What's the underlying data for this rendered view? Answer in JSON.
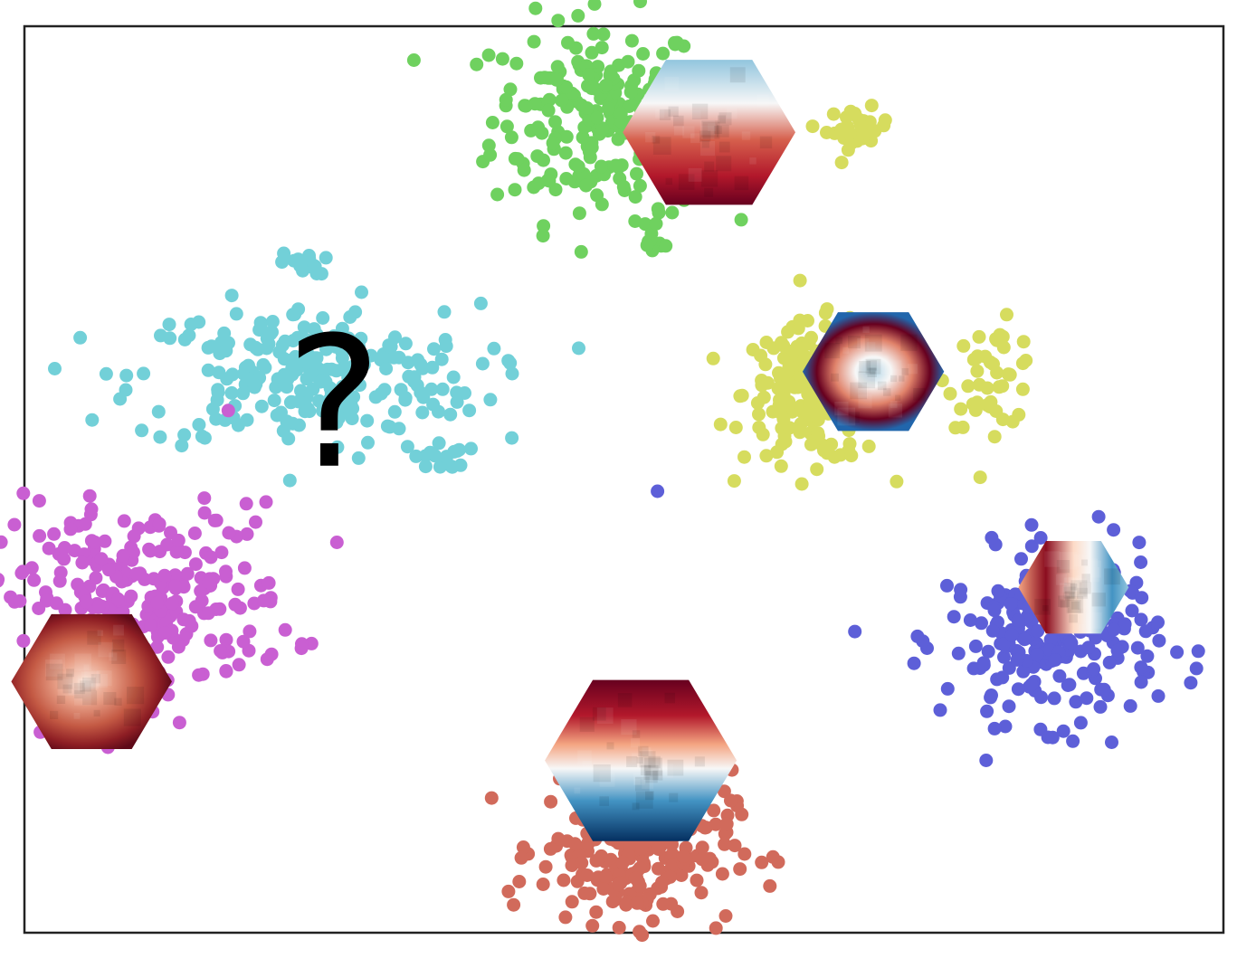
{
  "chart_data": {
    "type": "scatter",
    "title": "",
    "xlabel": "",
    "ylabel": "",
    "xlim": [
      0,
      100
    ],
    "ylim": [
      0,
      100
    ],
    "grid": false,
    "ticks": false,
    "annotation": "?",
    "series": [
      {
        "color": "#6fd15f",
        "clusters": [
          {
            "cx": 47.8,
            "cy": 89.8,
            "sx": 4.4,
            "sy": 5.6,
            "n": 230
          },
          {
            "cx": 52.8,
            "cy": 77.0,
            "sx": 0.6,
            "sy": 1.4,
            "n": 12
          }
        ]
      },
      {
        "color": "#d6dc5e",
        "clusters": [
          {
            "cx": 69.5,
            "cy": 88.7,
            "sx": 1.3,
            "sy": 1.1,
            "n": 30
          },
          {
            "cx": 66.0,
            "cy": 59.5,
            "sx": 3.0,
            "sy": 3.8,
            "n": 210
          },
          {
            "cx": 80.8,
            "cy": 61.5,
            "sx": 1.9,
            "sy": 2.8,
            "n": 45
          }
        ]
      },
      {
        "color": "#72d0d8",
        "clusters": [
          {
            "cx": 23.5,
            "cy": 61.3,
            "sx": 7.2,
            "sy": 4.0,
            "n": 250
          },
          {
            "cx": 23.3,
            "cy": 73.8,
            "sx": 1.0,
            "sy": 0.6,
            "n": 18
          },
          {
            "cx": 34.8,
            "cy": 52.6,
            "sx": 1.1,
            "sy": 0.8,
            "n": 16
          }
        ]
      },
      {
        "color": "#c95fd2",
        "clusters": [
          {
            "cx": 9.8,
            "cy": 36.8,
            "sx": 6.2,
            "sy": 5.2,
            "n": 260
          },
          {
            "cx": 17.0,
            "cy": 57.6,
            "sx": 0.1,
            "sy": 0.1,
            "n": 1
          }
        ]
      },
      {
        "color": "#5d5fd8",
        "clusters": [
          {
            "cx": 85.8,
            "cy": 32.5,
            "sx": 4.4,
            "sy": 4.6,
            "n": 240
          },
          {
            "cx": 52.8,
            "cy": 48.7,
            "sx": 0.1,
            "sy": 0.1,
            "n": 1
          }
        ]
      },
      {
        "color": "#d16a5b",
        "clusters": [
          {
            "cx": 51.0,
            "cy": 9.5,
            "sx": 4.0,
            "sy": 4.2,
            "n": 250
          }
        ]
      }
    ],
    "insets": [
      {
        "cx": 57.1,
        "cy": 88.3,
        "r": 7.2,
        "palette": "rdbu",
        "pattern": "vertical-gradient"
      },
      {
        "cx": 70.8,
        "cy": 61.9,
        "r": 5.9,
        "palette": "rdbu",
        "pattern": "ring"
      },
      {
        "cx": 87.5,
        "cy": 38.1,
        "r": 4.6,
        "palette": "rdbu",
        "pattern": "horizontal-gradient"
      },
      {
        "cx": 51.4,
        "cy": 19.0,
        "r": 8.0,
        "palette": "rdbu",
        "pattern": "top-red-bottom-blue"
      },
      {
        "cx": 5.6,
        "cy": 27.7,
        "r": 6.7,
        "palette": "reds",
        "pattern": "radial-mottled"
      }
    ],
    "annotation_position": [
      25.8,
      58.5
    ]
  }
}
